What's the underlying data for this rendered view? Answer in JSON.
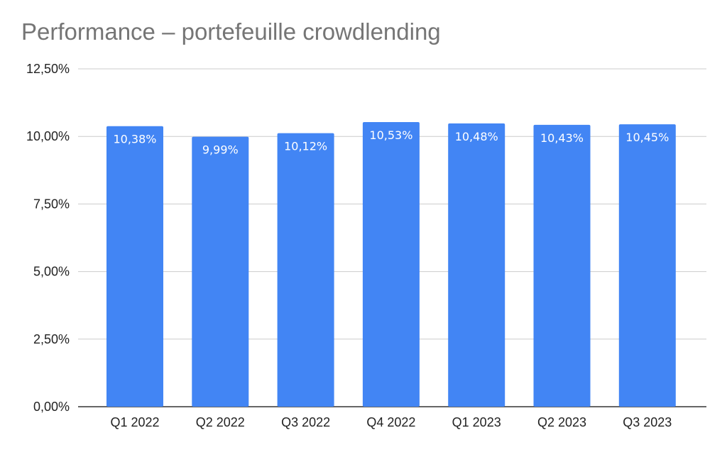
{
  "chart_data": {
    "type": "bar",
    "title": "Performance – portefeuille crowdlending",
    "xlabel": "",
    "ylabel": "",
    "categories": [
      "Q1 2022",
      "Q2 2022",
      "Q3 2022",
      "Q4 2022",
      "Q1 2023",
      "Q2 2023",
      "Q3 2023"
    ],
    "values": [
      10.38,
      9.99,
      10.12,
      10.53,
      10.48,
      10.43,
      10.45
    ],
    "data_labels": [
      "10,38%",
      "9,99%",
      "10,12%",
      "10,53%",
      "10,48%",
      "10,43%",
      "10,45%"
    ],
    "ylim": [
      0,
      12.5
    ],
    "y_ticks": [
      0,
      2.5,
      5,
      7.5,
      10,
      12.5
    ],
    "y_tick_labels": [
      "0,00%",
      "2,50%",
      "5,00%",
      "7,50%",
      "10,00%",
      "12,50%"
    ],
    "grid": true,
    "legend": "none",
    "colors": {
      "bar": "#4285f4",
      "grid": "#cccccc",
      "axis": "#333333",
      "title": "#757575"
    }
  }
}
